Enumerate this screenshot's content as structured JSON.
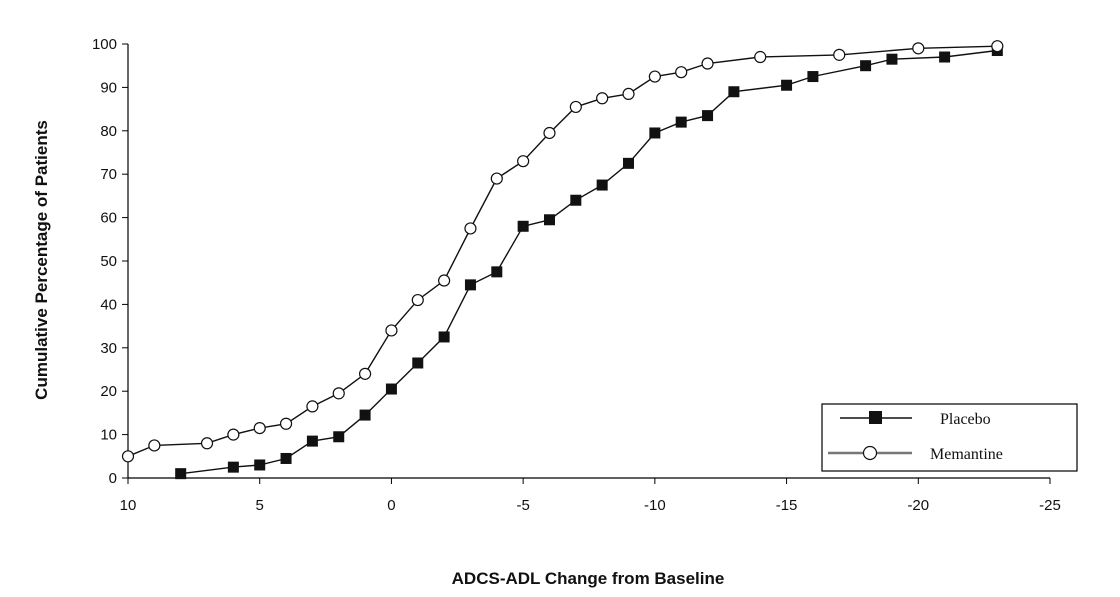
{
  "chart_data": {
    "type": "line",
    "xlabel": "ADCS-ADL Change from Baseline",
    "ylabel": "Cumulative Percentage of Patients",
    "xlim": [
      10,
      -25
    ],
    "ylim": [
      0,
      100
    ],
    "xticks": [
      10,
      5,
      0,
      -5,
      -10,
      -15,
      -20,
      -25
    ],
    "yticks": [
      0,
      10,
      20,
      30,
      40,
      50,
      60,
      70,
      80,
      90,
      100
    ],
    "x_tick_labels": [
      "10",
      "5",
      "0",
      "-5",
      "-10",
      "-15",
      "-20",
      "-25"
    ],
    "y_tick_labels": [
      "0",
      "10",
      "20",
      "30",
      "40",
      "50",
      "60",
      "70",
      "80",
      "90",
      "100"
    ],
    "grid": false,
    "legend_position": "bottom-right",
    "series": [
      {
        "name": "Placebo",
        "marker": "filled-square",
        "color": "#111111",
        "x": [
          8,
          6,
          5,
          4,
          3,
          2,
          1,
          0,
          -1,
          -2,
          -3,
          -4,
          -5,
          -6,
          -7,
          -8,
          -9,
          -10,
          -11,
          -12,
          -13,
          -15,
          -16,
          -18,
          -19,
          -21,
          -23
        ],
        "y": [
          1,
          2.5,
          3,
          4.5,
          8.5,
          9.5,
          14.5,
          20.5,
          26.5,
          32.5,
          44.5,
          47.5,
          58,
          59.5,
          64,
          67.5,
          72.5,
          79.5,
          82,
          83.5,
          89,
          90.5,
          92.5,
          95,
          96.5,
          97,
          98.5
        ]
      },
      {
        "name": "Memantine",
        "marker": "open-circle",
        "color": "#111111",
        "x": [
          10,
          9,
          7,
          6,
          5,
          4,
          3,
          2,
          1,
          0,
          -1,
          -2,
          -3,
          -4,
          -5,
          -6,
          -7,
          -8,
          -9,
          -10,
          -11,
          -12,
          -14,
          -17,
          -20,
          -23
        ],
        "y": [
          5,
          7.5,
          8,
          10,
          11.5,
          12.5,
          16.5,
          19.5,
          24,
          34,
          41,
          45.5,
          57.5,
          69,
          73,
          79.5,
          85.5,
          87.5,
          88.5,
          92.5,
          93.5,
          95.5,
          97,
          97.5,
          99,
          99.5
        ]
      }
    ]
  }
}
